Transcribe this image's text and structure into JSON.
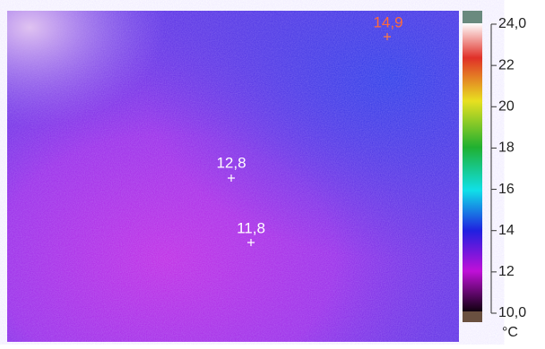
{
  "thermal_image": {
    "spots": [
      {
        "label": "14,9"
      },
      {
        "label": "12,8"
      },
      {
        "label": "11,8"
      }
    ]
  },
  "color_scale": {
    "ticks": [
      "24,0",
      "22",
      "20",
      "18",
      "16",
      "14",
      "12",
      "10,0"
    ],
    "unit": "°C"
  }
}
